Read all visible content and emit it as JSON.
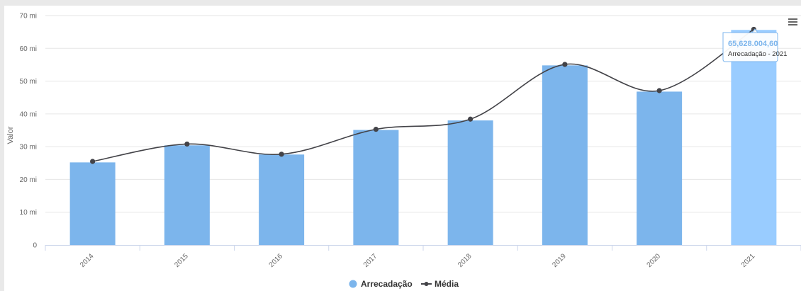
{
  "chart_data": {
    "type": "bar",
    "categories": [
      "2014",
      "2015",
      "2016",
      "2017",
      "2018",
      "2019",
      "2020",
      "2021"
    ],
    "series": [
      {
        "name": "Arrecadação",
        "type": "bar",
        "color": "#7cb5ec",
        "values": [
          25.2,
          30.4,
          27.6,
          35.1,
          38.0,
          54.8,
          46.8,
          65.628
        ]
      },
      {
        "name": "Média",
        "type": "line",
        "color": "#434348",
        "values": [
          25.5,
          30.8,
          27.7,
          35.3,
          38.4,
          55.1,
          47.1,
          65.8
        ]
      }
    ],
    "ylabel": "Valor",
    "ylim": [
      0,
      70
    ],
    "yticks": [
      {
        "value": 0,
        "label": "0"
      },
      {
        "value": 10,
        "label": "10 mi"
      },
      {
        "value": 20,
        "label": "20 mi"
      },
      {
        "value": 30,
        "label": "30 mi"
      },
      {
        "value": 40,
        "label": "40 mi"
      },
      {
        "value": 50,
        "label": "50 mi"
      },
      {
        "value": 60,
        "label": "60 mi"
      },
      {
        "value": 70,
        "label": "70 mi"
      }
    ],
    "highlighted_index": 7,
    "highlight_color": "#99ccff",
    "grid": true,
    "legend": "bottom-center"
  },
  "tooltip": {
    "value": "65,628.004,60",
    "label": "Arrecadação - 2021"
  },
  "menu_icon": "hamburger-menu-icon"
}
